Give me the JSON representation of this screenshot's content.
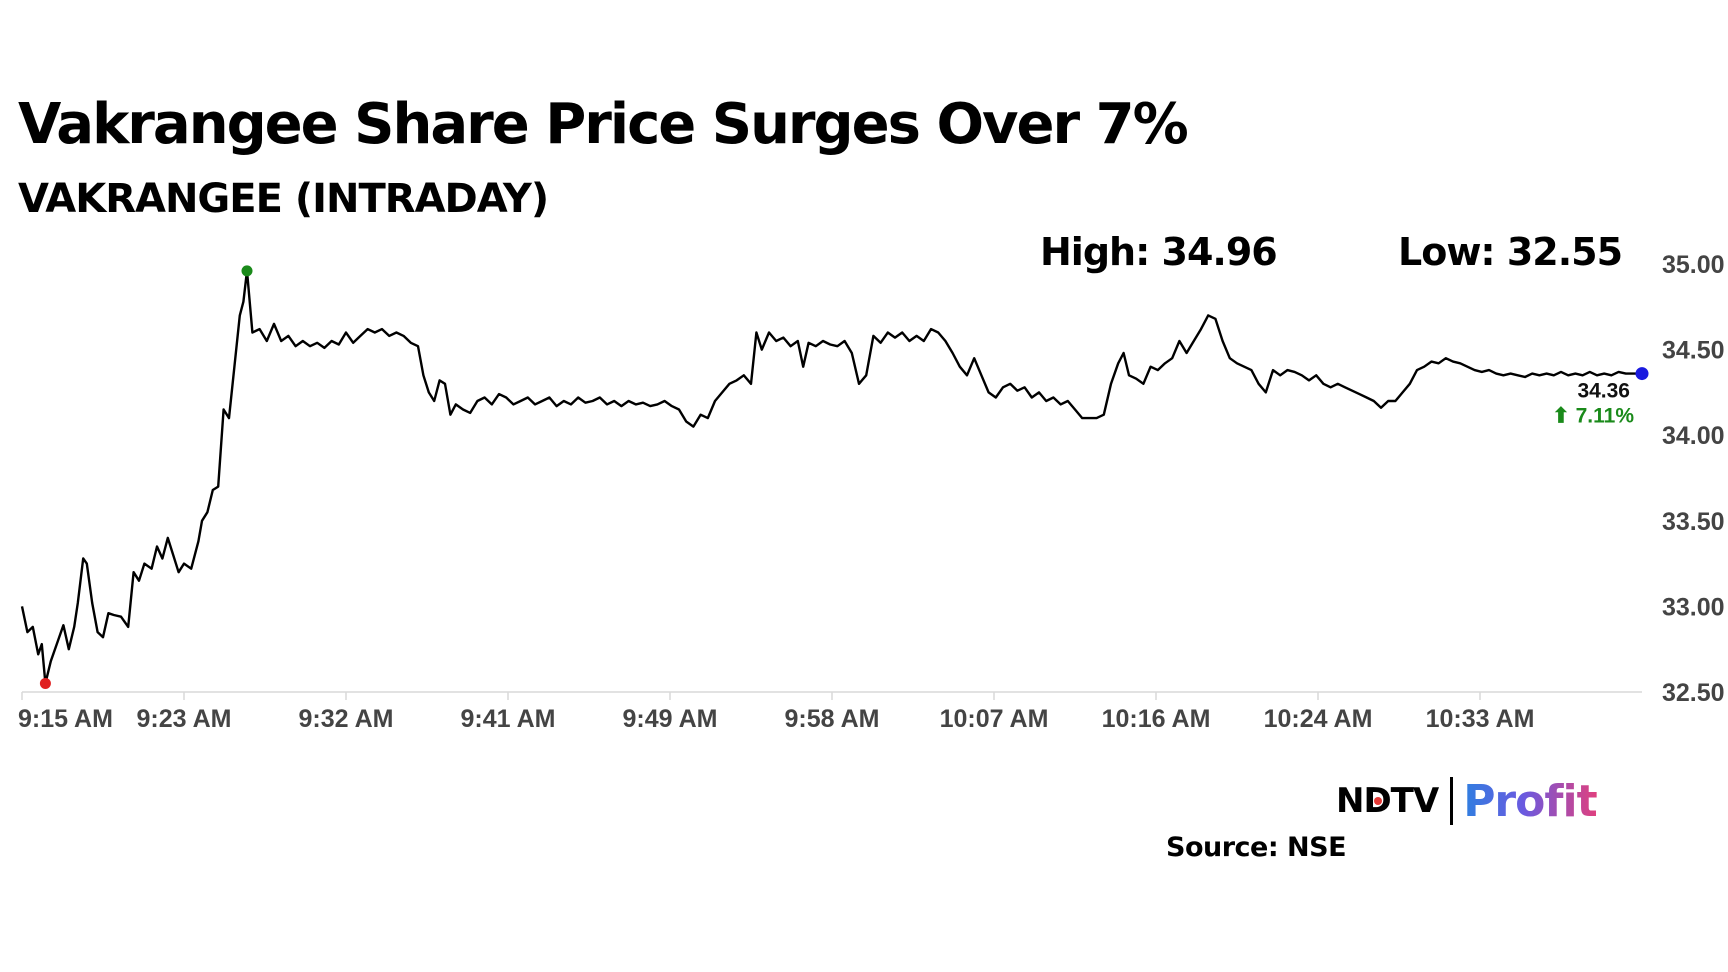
{
  "header": {
    "title": "Vakrangee Share Price Surges Over 7%",
    "subtitle": "VAKRANGEE (INTRADAY)"
  },
  "stats": {
    "high_label": "High: 34.96",
    "low_label": "Low: 32.55"
  },
  "last": {
    "price_label": "34.36",
    "change_label": "⬆ 7.11%"
  },
  "footer": {
    "logo_ndtv": "NDTV",
    "logo_profit": "Profit",
    "source": "Source: NSE"
  },
  "colors": {
    "line": "#000000",
    "high_marker": "#1a8a1a",
    "low_marker": "#e02020",
    "last_marker": "#1a1adf",
    "change_positive": "#1a8a1a",
    "axis": "#d9d9d9",
    "tick_text": "#444444"
  },
  "chart_data": {
    "type": "line",
    "title": "VAKRANGEE (INTRADAY)",
    "xlabel": "",
    "ylabel": "",
    "ylim": [
      32.5,
      35.0
    ],
    "yticks": [
      35.0,
      34.5,
      34.0,
      33.5,
      33.0,
      32.5
    ],
    "ytick_labels": [
      "35.00",
      "34.50",
      "34.00",
      "33.50",
      "33.00",
      "32.50"
    ],
    "xlim": [
      0,
      90
    ],
    "xticks": [
      0,
      9,
      18,
      27,
      36,
      45,
      54,
      63,
      72,
      81
    ],
    "xtick_labels": [
      "9:15 AM",
      "9:23 AM",
      "9:32 AM",
      "9:41 AM",
      "9:49 AM",
      "9:58 AM",
      "10:07 AM",
      "10:16 AM",
      "10:24 AM",
      "10:33 AM"
    ],
    "high": {
      "x": 12.5,
      "y": 34.96,
      "label": "High: 34.96"
    },
    "low": {
      "x": 1.3,
      "y": 32.55,
      "label": "Low: 32.55"
    },
    "last": {
      "x": 90,
      "y": 34.36,
      "change_pct": 7.11
    },
    "series": [
      {
        "name": "VAKRANGEE",
        "points": [
          [
            0,
            33.0
          ],
          [
            0.3,
            32.85
          ],
          [
            0.6,
            32.88
          ],
          [
            0.9,
            32.72
          ],
          [
            1.1,
            32.78
          ],
          [
            1.3,
            32.55
          ],
          [
            1.6,
            32.68
          ],
          [
            2.0,
            32.8
          ],
          [
            2.3,
            32.89
          ],
          [
            2.6,
            32.75
          ],
          [
            2.9,
            32.88
          ],
          [
            3.1,
            33.02
          ],
          [
            3.4,
            33.28
          ],
          [
            3.6,
            33.25
          ],
          [
            3.9,
            33.02
          ],
          [
            4.2,
            32.85
          ],
          [
            4.5,
            32.82
          ],
          [
            4.8,
            32.96
          ],
          [
            5.1,
            32.95
          ],
          [
            5.5,
            32.94
          ],
          [
            5.9,
            32.88
          ],
          [
            6.2,
            33.2
          ],
          [
            6.5,
            33.15
          ],
          [
            6.8,
            33.25
          ],
          [
            7.2,
            33.22
          ],
          [
            7.5,
            33.35
          ],
          [
            7.8,
            33.28
          ],
          [
            8.1,
            33.4
          ],
          [
            8.4,
            33.3
          ],
          [
            8.7,
            33.2
          ],
          [
            9.0,
            33.25
          ],
          [
            9.4,
            33.22
          ],
          [
            9.8,
            33.38
          ],
          [
            10.0,
            33.5
          ],
          [
            10.3,
            33.55
          ],
          [
            10.6,
            33.68
          ],
          [
            10.9,
            33.7
          ],
          [
            11.2,
            34.15
          ],
          [
            11.5,
            34.1
          ],
          [
            11.8,
            34.4
          ],
          [
            12.1,
            34.7
          ],
          [
            12.3,
            34.78
          ],
          [
            12.5,
            34.96
          ],
          [
            12.8,
            34.6
          ],
          [
            13.2,
            34.62
          ],
          [
            13.6,
            34.55
          ],
          [
            14.0,
            34.65
          ],
          [
            14.4,
            34.55
          ],
          [
            14.8,
            34.58
          ],
          [
            15.2,
            34.52
          ],
          [
            15.6,
            34.55
          ],
          [
            16.0,
            34.52
          ],
          [
            16.4,
            34.54
          ],
          [
            16.8,
            34.51
          ],
          [
            17.2,
            34.55
          ],
          [
            17.6,
            34.53
          ],
          [
            18.0,
            34.6
          ],
          [
            18.4,
            34.54
          ],
          [
            18.8,
            34.58
          ],
          [
            19.2,
            34.62
          ],
          [
            19.6,
            34.6
          ],
          [
            20.0,
            34.62
          ],
          [
            20.4,
            34.58
          ],
          [
            20.8,
            34.6
          ],
          [
            21.2,
            34.58
          ],
          [
            21.6,
            34.54
          ],
          [
            22.0,
            34.52
          ],
          [
            22.3,
            34.35
          ],
          [
            22.6,
            34.25
          ],
          [
            22.9,
            34.2
          ],
          [
            23.2,
            34.32
          ],
          [
            23.5,
            34.3
          ],
          [
            23.8,
            34.12
          ],
          [
            24.1,
            34.18
          ],
          [
            24.5,
            34.15
          ],
          [
            24.9,
            34.13
          ],
          [
            25.3,
            34.2
          ],
          [
            25.7,
            34.22
          ],
          [
            26.1,
            34.18
          ],
          [
            26.5,
            34.24
          ],
          [
            26.9,
            34.22
          ],
          [
            27.3,
            34.18
          ],
          [
            27.7,
            34.2
          ],
          [
            28.1,
            34.22
          ],
          [
            28.5,
            34.18
          ],
          [
            28.9,
            34.2
          ],
          [
            29.3,
            34.22
          ],
          [
            29.7,
            34.17
          ],
          [
            30.1,
            34.2
          ],
          [
            30.5,
            34.18
          ],
          [
            30.9,
            34.22
          ],
          [
            31.3,
            34.19
          ],
          [
            31.7,
            34.2
          ],
          [
            32.1,
            34.22
          ],
          [
            32.5,
            34.18
          ],
          [
            32.9,
            34.2
          ],
          [
            33.3,
            34.17
          ],
          [
            33.7,
            34.2
          ],
          [
            34.1,
            34.18
          ],
          [
            34.5,
            34.19
          ],
          [
            34.9,
            34.17
          ],
          [
            35.3,
            34.18
          ],
          [
            35.7,
            34.2
          ],
          [
            36.1,
            34.17
          ],
          [
            36.5,
            34.15
          ],
          [
            36.9,
            34.08
          ],
          [
            37.3,
            34.05
          ],
          [
            37.7,
            34.12
          ],
          [
            38.1,
            34.1
          ],
          [
            38.5,
            34.2
          ],
          [
            38.9,
            34.25
          ],
          [
            39.3,
            34.3
          ],
          [
            39.7,
            34.32
          ],
          [
            40.1,
            34.35
          ],
          [
            40.5,
            34.3
          ],
          [
            40.8,
            34.6
          ],
          [
            41.1,
            34.5
          ],
          [
            41.5,
            34.6
          ],
          [
            41.9,
            34.55
          ],
          [
            42.3,
            34.57
          ],
          [
            42.7,
            34.52
          ],
          [
            43.1,
            34.55
          ],
          [
            43.4,
            34.4
          ],
          [
            43.7,
            34.54
          ],
          [
            44.1,
            34.52
          ],
          [
            44.5,
            34.55
          ],
          [
            44.9,
            34.53
          ],
          [
            45.3,
            34.52
          ],
          [
            45.7,
            34.55
          ],
          [
            46.1,
            34.48
          ],
          [
            46.5,
            34.3
          ],
          [
            46.9,
            34.35
          ],
          [
            47.3,
            34.58
          ],
          [
            47.7,
            34.54
          ],
          [
            48.1,
            34.6
          ],
          [
            48.5,
            34.57
          ],
          [
            48.9,
            34.6
          ],
          [
            49.3,
            34.55
          ],
          [
            49.7,
            34.58
          ],
          [
            50.1,
            34.55
          ],
          [
            50.5,
            34.62
          ],
          [
            50.9,
            34.6
          ],
          [
            51.3,
            34.55
          ],
          [
            51.7,
            34.48
          ],
          [
            52.1,
            34.4
          ],
          [
            52.5,
            34.35
          ],
          [
            52.9,
            34.45
          ],
          [
            53.3,
            34.35
          ],
          [
            53.7,
            34.25
          ],
          [
            54.1,
            34.22
          ],
          [
            54.5,
            34.28
          ],
          [
            54.9,
            34.3
          ],
          [
            55.3,
            34.26
          ],
          [
            55.7,
            34.28
          ],
          [
            56.1,
            34.22
          ],
          [
            56.5,
            34.25
          ],
          [
            56.9,
            34.2
          ],
          [
            57.3,
            34.22
          ],
          [
            57.7,
            34.18
          ],
          [
            58.1,
            34.2
          ],
          [
            58.5,
            34.15
          ],
          [
            58.9,
            34.1
          ],
          [
            59.3,
            34.1
          ],
          [
            59.7,
            34.1
          ],
          [
            60.1,
            34.12
          ],
          [
            60.5,
            34.3
          ],
          [
            60.9,
            34.42
          ],
          [
            61.2,
            34.48
          ],
          [
            61.5,
            34.35
          ],
          [
            61.9,
            34.33
          ],
          [
            62.3,
            34.3
          ],
          [
            62.7,
            34.4
          ],
          [
            63.1,
            34.38
          ],
          [
            63.5,
            34.42
          ],
          [
            63.9,
            34.45
          ],
          [
            64.3,
            34.55
          ],
          [
            64.7,
            34.48
          ],
          [
            65.1,
            34.55
          ],
          [
            65.5,
            34.62
          ],
          [
            65.9,
            34.7
          ],
          [
            66.3,
            34.68
          ],
          [
            66.7,
            34.55
          ],
          [
            67.1,
            34.45
          ],
          [
            67.5,
            34.42
          ],
          [
            67.9,
            34.4
          ],
          [
            68.3,
            34.38
          ],
          [
            68.7,
            34.3
          ],
          [
            69.1,
            34.25
          ],
          [
            69.5,
            34.38
          ],
          [
            69.9,
            34.35
          ],
          [
            70.3,
            34.38
          ],
          [
            70.7,
            34.37
          ],
          [
            71.1,
            34.35
          ],
          [
            71.5,
            34.32
          ],
          [
            71.9,
            34.35
          ],
          [
            72.3,
            34.3
          ],
          [
            72.7,
            34.28
          ],
          [
            73.1,
            34.3
          ],
          [
            73.5,
            34.28
          ],
          [
            73.9,
            34.26
          ],
          [
            74.3,
            34.24
          ],
          [
            74.7,
            34.22
          ],
          [
            75.1,
            34.2
          ],
          [
            75.5,
            34.16
          ],
          [
            75.9,
            34.2
          ],
          [
            76.3,
            34.2
          ],
          [
            76.7,
            34.25
          ],
          [
            77.1,
            34.3
          ],
          [
            77.5,
            34.38
          ],
          [
            77.9,
            34.4
          ],
          [
            78.3,
            34.43
          ],
          [
            78.7,
            34.42
          ],
          [
            79.1,
            34.45
          ],
          [
            79.5,
            34.43
          ],
          [
            79.9,
            34.42
          ],
          [
            80.3,
            34.4
          ],
          [
            80.7,
            34.38
          ],
          [
            81.1,
            34.37
          ],
          [
            81.5,
            34.38
          ],
          [
            81.9,
            34.36
          ],
          [
            82.3,
            34.35
          ],
          [
            82.7,
            34.36
          ],
          [
            83.1,
            34.35
          ],
          [
            83.5,
            34.34
          ],
          [
            83.9,
            34.36
          ],
          [
            84.3,
            34.35
          ],
          [
            84.7,
            34.36
          ],
          [
            85.1,
            34.35
          ],
          [
            85.5,
            34.37
          ],
          [
            85.9,
            34.35
          ],
          [
            86.3,
            34.36
          ],
          [
            86.7,
            34.35
          ],
          [
            87.1,
            34.37
          ],
          [
            87.5,
            34.35
          ],
          [
            87.9,
            34.36
          ],
          [
            88.3,
            34.35
          ],
          [
            88.7,
            34.37
          ],
          [
            89.1,
            34.36
          ],
          [
            89.5,
            34.36
          ],
          [
            90.0,
            34.36
          ]
        ]
      }
    ]
  }
}
